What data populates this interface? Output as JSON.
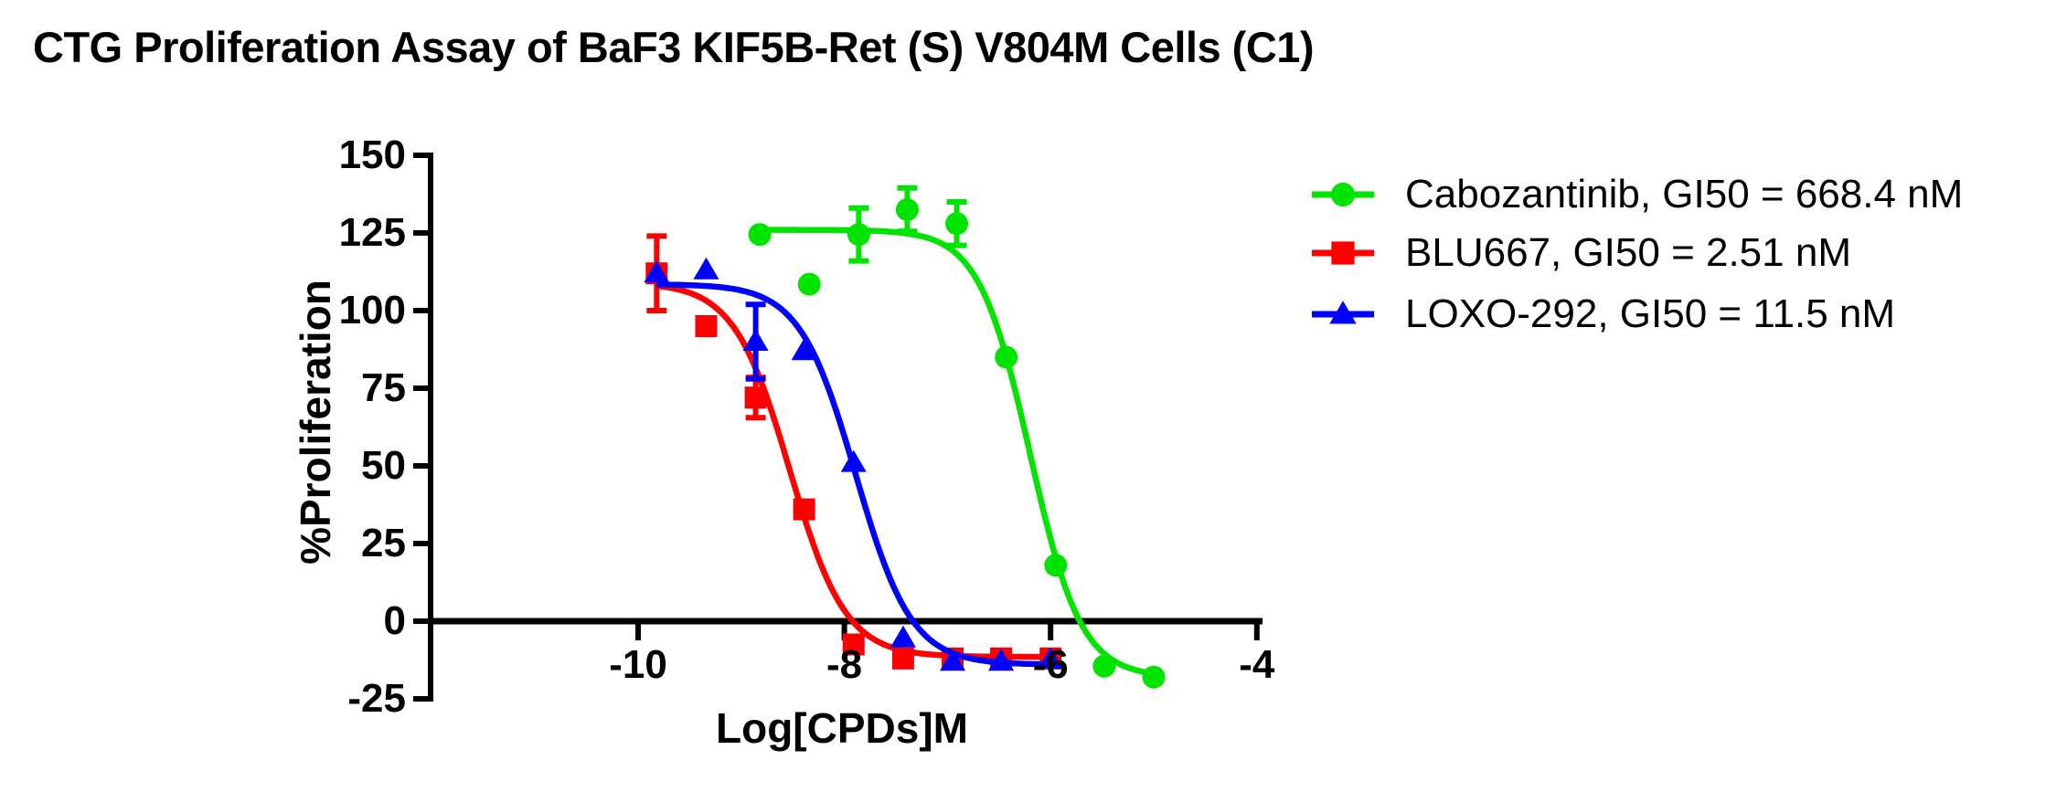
{
  "title": "CTG Proliferation Assay of BaF3 KIF5B-Ret (S) V804M Cells (C1)",
  "chart_data": {
    "type": "scatter",
    "subtype": "dose-response-curves",
    "title": "CTG Proliferation Assay of BaF3 KIF5B-Ret (S) V804M Cells (C1)",
    "xlabel": "Log[CPDs]M",
    "ylabel": "%Proliferation",
    "xlim": [
      -12.0,
      -3.9
    ],
    "ylim": [
      -25,
      150
    ],
    "xticks": [
      -10,
      -8,
      -6,
      -4
    ],
    "xtick_labels": [
      "-10",
      "-8",
      "-6",
      "-4"
    ],
    "yticks": [
      150,
      125,
      100,
      75,
      50,
      25,
      0,
      -25
    ],
    "ytick_labels": [
      "150",
      "125",
      "100",
      "75",
      "50",
      "25",
      "0",
      "-25"
    ],
    "grid": false,
    "legend_position": "right",
    "series": [
      {
        "name": "Cabozantinib",
        "label": "Cabozantinib, GI50 = 668.4 nM",
        "gi50": "668.4 nM",
        "color": "#00E400",
        "marker": "circle",
        "x": [
          -8.82,
          -8.34,
          -7.86,
          -7.39,
          -6.91,
          -6.43,
          -5.95,
          -5.48,
          -5.0
        ],
        "y": [
          124.5,
          108.5,
          124.5,
          132.5,
          128,
          85,
          18,
          -14.5,
          -18
        ],
        "err": [
          null,
          null,
          8.5,
          7,
          7,
          null,
          null,
          null,
          null
        ],
        "fit": {
          "top": 126,
          "bottom": -18,
          "logec50": -6.2,
          "hill": 1.75
        }
      },
      {
        "name": "BLU667",
        "label": "BLU667, GI50 = 2.51 nM",
        "gi50": "2.51 nM",
        "color": "#FF0000",
        "marker": "square",
        "x": [
          -9.82,
          -9.34,
          -8.86,
          -8.39,
          -7.91,
          -7.43,
          -6.95,
          -6.48,
          -6.0
        ],
        "y": [
          112,
          95,
          72,
          36,
          -7.5,
          -12,
          -12,
          -12,
          -12
        ],
        "err": [
          12,
          null,
          6.5,
          null,
          null,
          null,
          null,
          null,
          null
        ],
        "fit": {
          "top": 109,
          "bottom": -11.5,
          "logec50": -8.53,
          "hill": 1.6
        }
      },
      {
        "name": "LOXO-292",
        "label": "LOXO-292, GI50 = 11.5 nM",
        "gi50": "11.5 nM",
        "color": "#0000FF",
        "marker": "triangle",
        "x": [
          -9.82,
          -9.34,
          -8.86,
          -8.39,
          -7.91,
          -7.43,
          -6.95,
          -6.48,
          -6.0
        ],
        "y": [
          112,
          113,
          90,
          87,
          51,
          -5.5,
          -13,
          -13,
          -12.5
        ],
        "err": [
          null,
          null,
          12,
          null,
          null,
          null,
          null,
          null,
          null
        ],
        "fit": {
          "top": 108.5,
          "bottom": -14,
          "logec50": -7.89,
          "hill": 1.6
        }
      }
    ]
  }
}
